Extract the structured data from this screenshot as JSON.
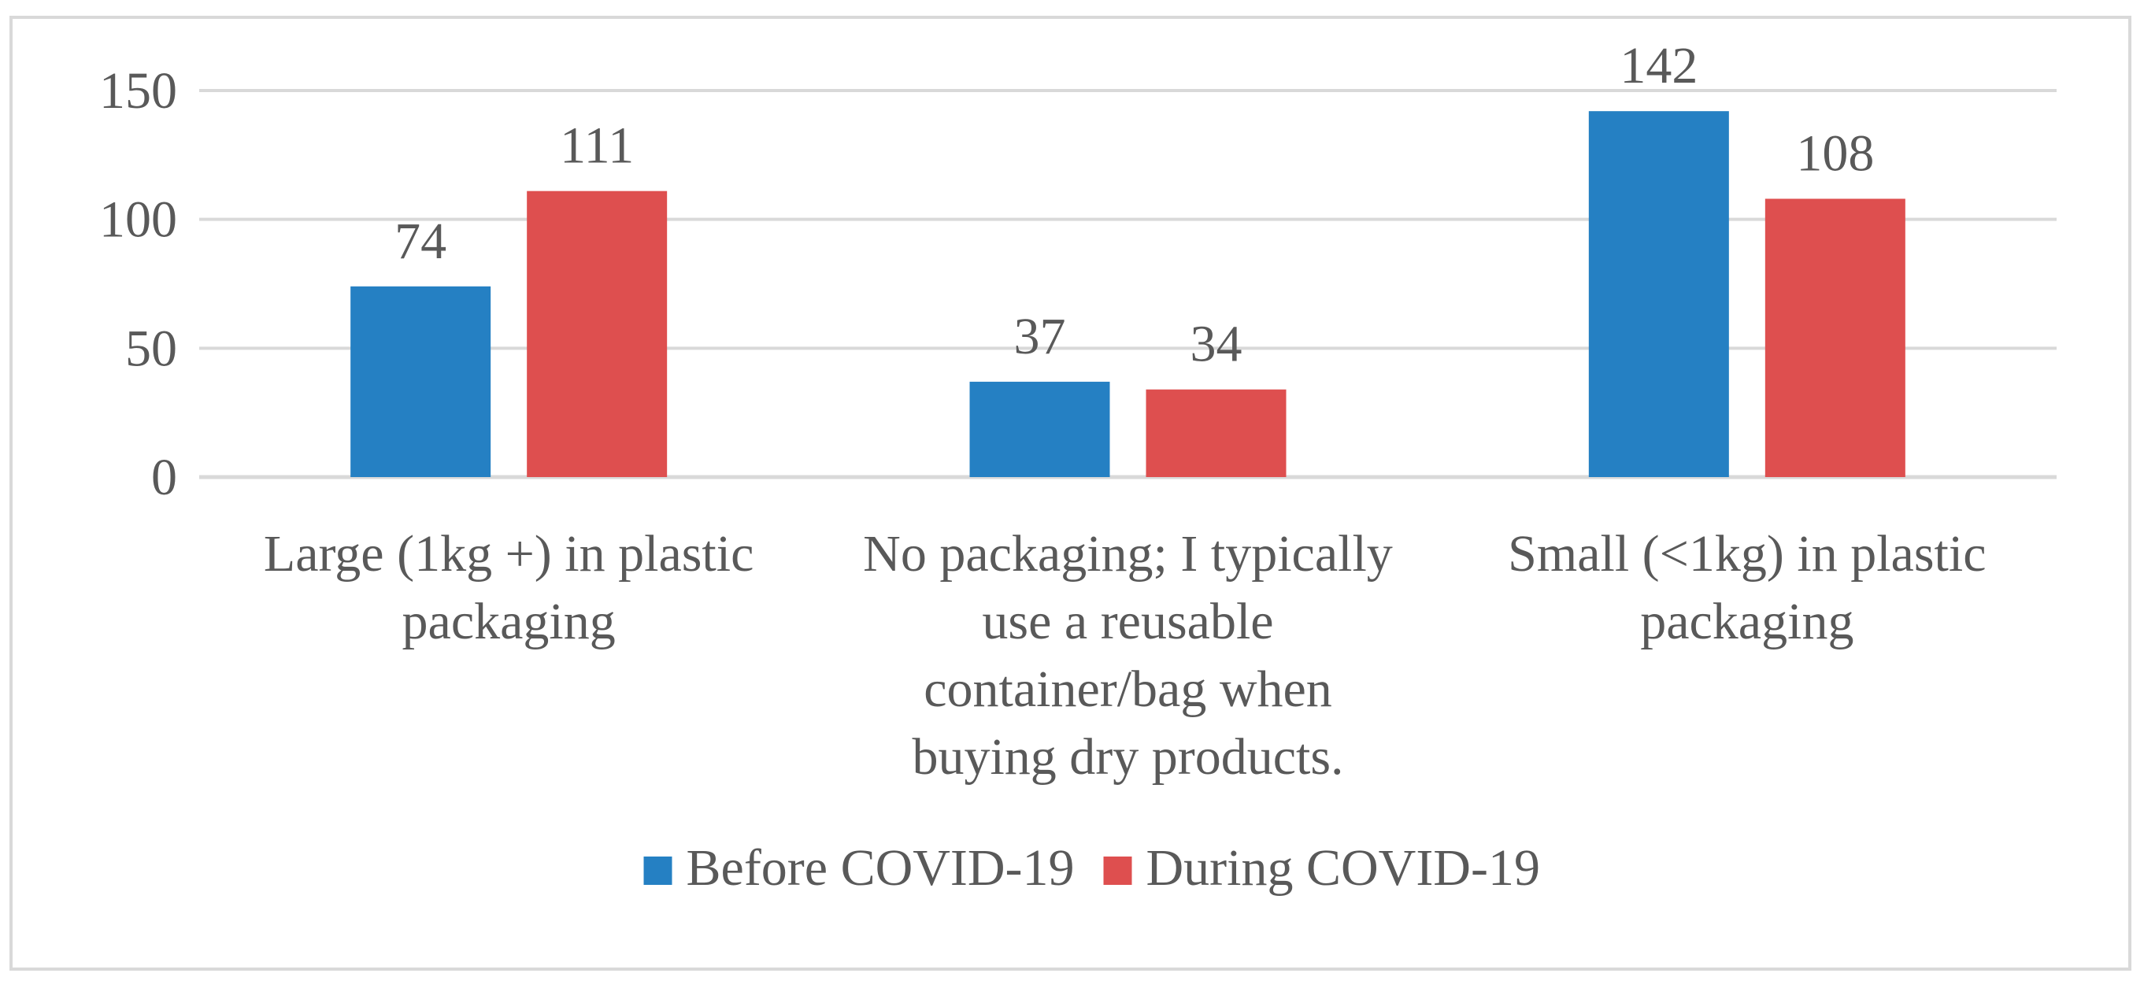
{
  "chart_data": {
    "type": "bar",
    "title": "",
    "xlabel": "",
    "ylabel": "",
    "ylim": [
      0,
      150
    ],
    "yticks": [
      0,
      50,
      100,
      150
    ],
    "grid": true,
    "legend_position": "bottom",
    "categories": [
      [
        "Large (1kg +) in plastic",
        "packaging"
      ],
      [
        "No packaging; I typically",
        "use a reusable",
        "container/bag when",
        "buying dry products."
      ],
      [
        "Small (<1kg) in plastic",
        "packaging"
      ]
    ],
    "series": [
      {
        "name": "Before COVID-19",
        "color": "#2580c3",
        "values": [
          74,
          37,
          142
        ]
      },
      {
        "name": "During COVID-19",
        "color": "#de4f4f",
        "values": [
          111,
          34,
          108
        ]
      }
    ]
  }
}
